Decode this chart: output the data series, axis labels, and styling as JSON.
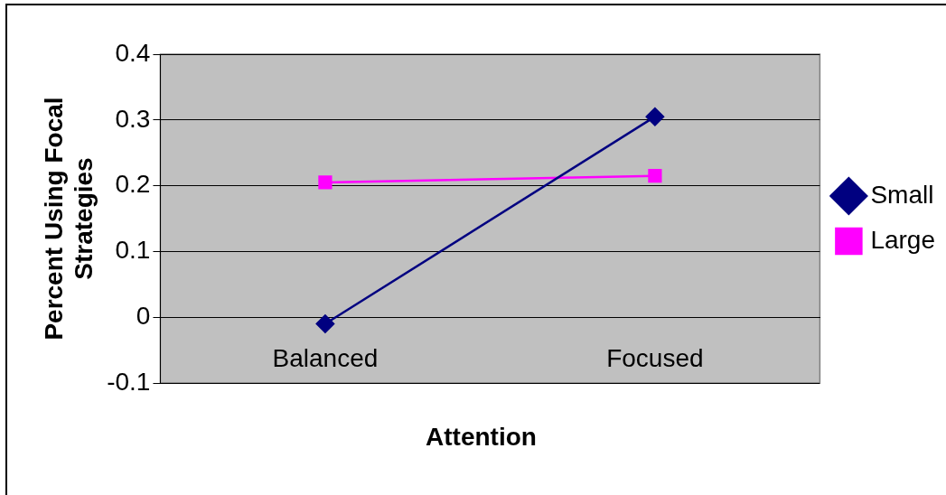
{
  "chart_data": {
    "type": "line",
    "xlabel": "Attention",
    "ylabel": "Percent Using Focal Strategies",
    "categories": [
      "Balanced",
      "Focused"
    ],
    "series": [
      {
        "name": "Small",
        "color": "#000080",
        "values": [
          -0.01,
          0.305
        ],
        "marker": "diamond"
      },
      {
        "name": "Large",
        "color": "#ff00ff",
        "values": [
          0.205,
          0.215
        ],
        "marker": "square"
      }
    ],
    "ylim": [
      -0.1,
      0.4
    ],
    "yticks": [
      -0.1,
      0,
      0.1,
      0.2,
      0.3,
      0.4
    ],
    "grid": "y",
    "legend": "right"
  }
}
